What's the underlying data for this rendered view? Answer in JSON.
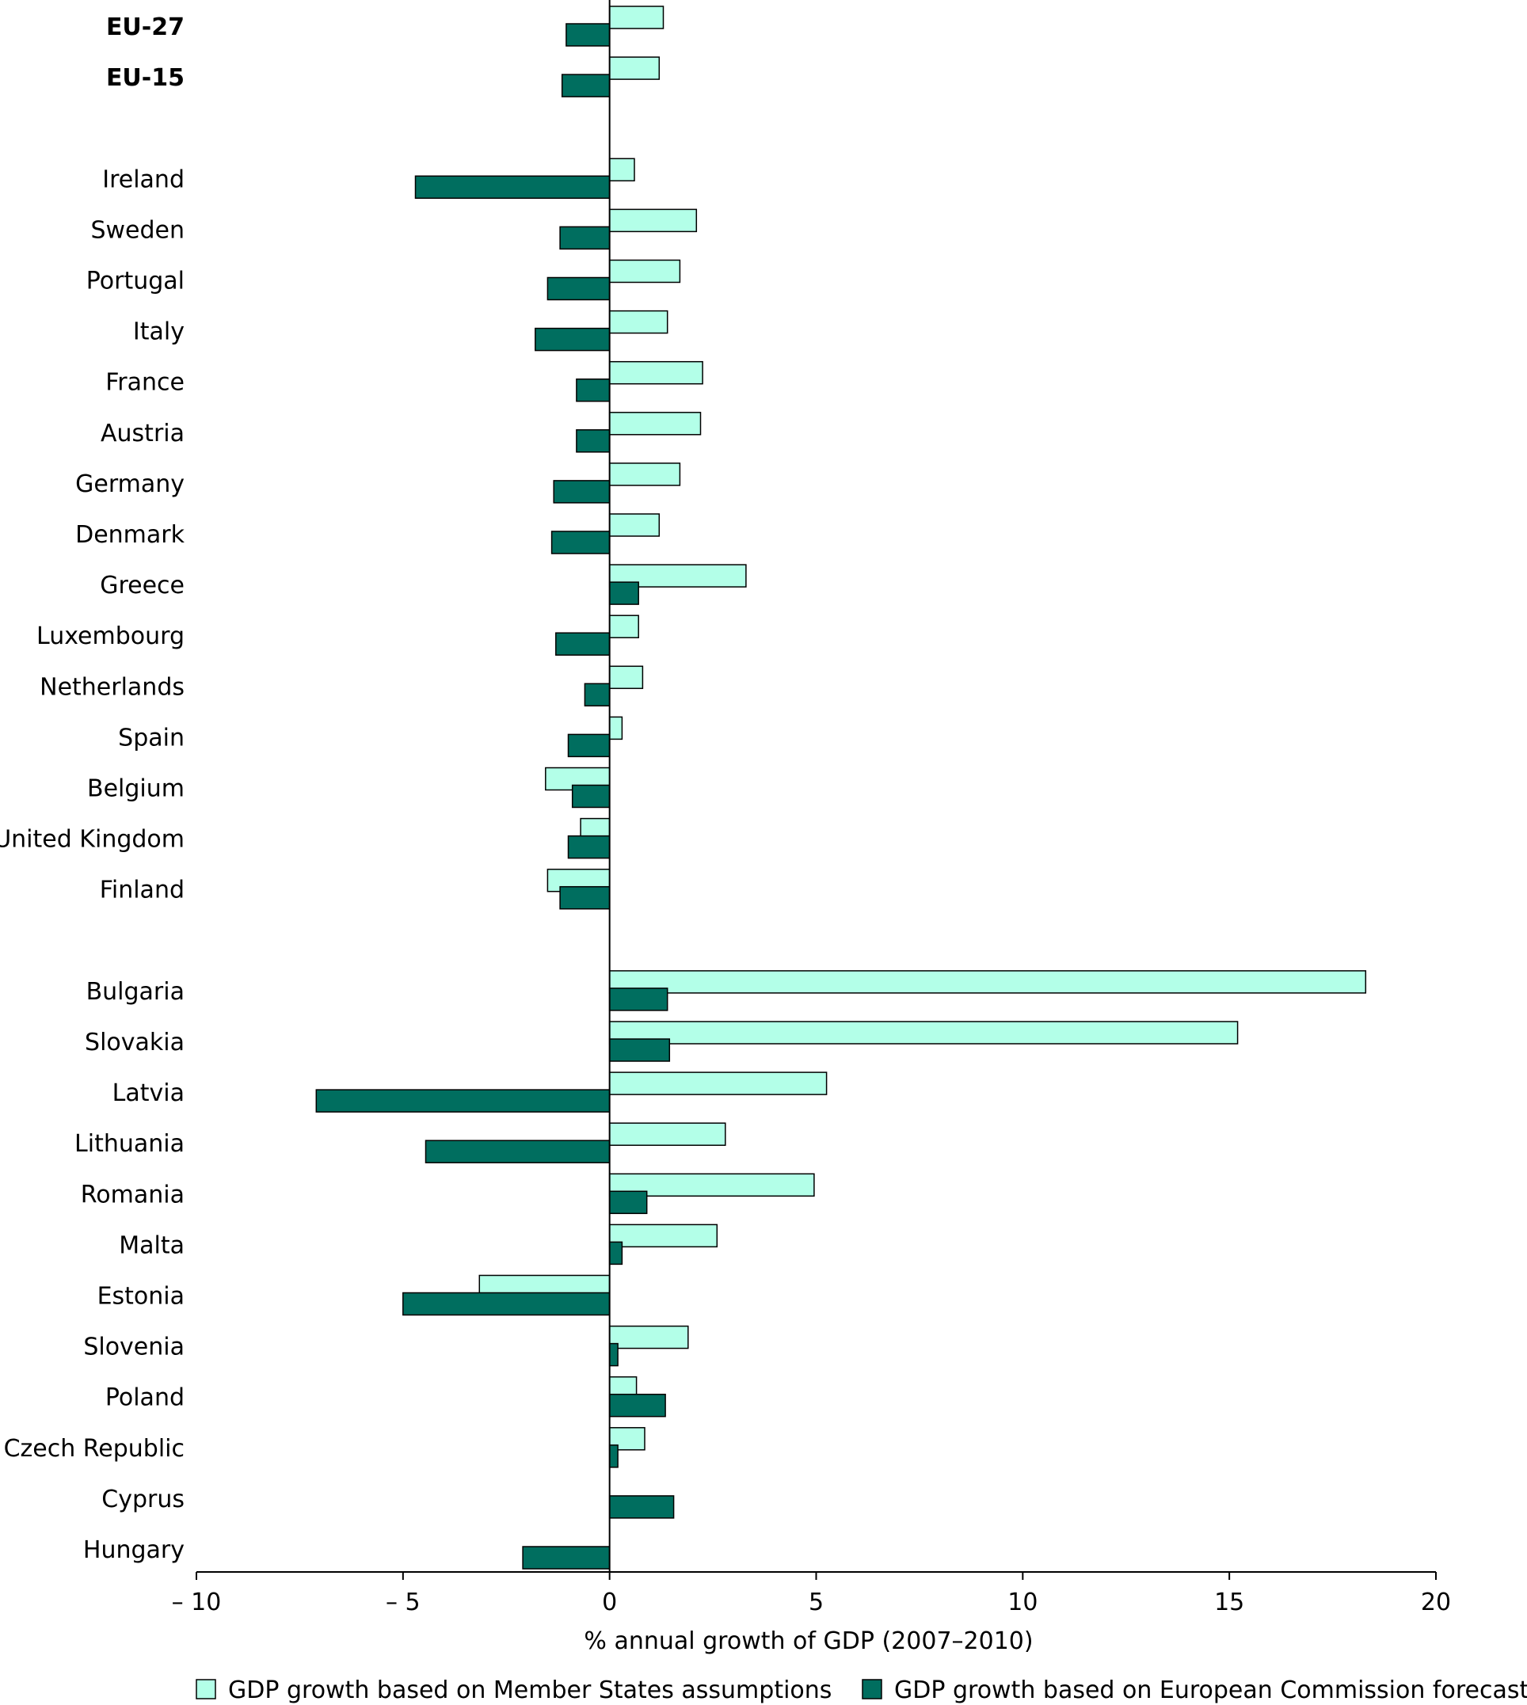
{
  "chart_data": {
    "type": "bar",
    "orientation": "horizontal",
    "xlabel": "% annual growth of GDP (2007–2010)",
    "xlim": [
      -10,
      20
    ],
    "xticks": [
      -10,
      -5,
      0,
      5,
      10,
      15,
      20
    ],
    "xtick_labels": [
      "– 10",
      "– 5",
      "0",
      "5",
      "10",
      "15",
      "20"
    ],
    "grid": false,
    "legend_position": "bottom",
    "categories": [
      {
        "label": "EU-27",
        "bold": true,
        "ms": 1.3,
        "ec": -1.05
      },
      {
        "label": "EU-15",
        "bold": true,
        "ms": 1.2,
        "ec": -1.15
      },
      {
        "label": "",
        "gap": true
      },
      {
        "label": "Ireland",
        "ms": 0.6,
        "ec": -4.7
      },
      {
        "label": "Sweden",
        "ms": 2.1,
        "ec": -1.2
      },
      {
        "label": "Portugal",
        "ms": 1.7,
        "ec": -1.5
      },
      {
        "label": "Italy",
        "ms": 1.4,
        "ec": -1.8
      },
      {
        "label": "France",
        "ms": 2.25,
        "ec": -0.8
      },
      {
        "label": "Austria",
        "ms": 2.2,
        "ec": -0.8
      },
      {
        "label": "Germany",
        "ms": 1.7,
        "ec": -1.35
      },
      {
        "label": "Denmark",
        "ms": 1.2,
        "ec": -1.4
      },
      {
        "label": "Greece",
        "ms": 3.3,
        "ec": 0.7
      },
      {
        "label": "Luxembourg",
        "ms": 0.7,
        "ec": -1.3
      },
      {
        "label": "Netherlands",
        "ms": 0.8,
        "ec": -0.6
      },
      {
        "label": "Spain",
        "ms": 0.3,
        "ec": -1.0
      },
      {
        "label": "Belgium",
        "ms": -1.55,
        "ec": -0.9
      },
      {
        "label": "United Kingdom",
        "ms": -0.7,
        "ec": -1.0
      },
      {
        "label": "Finland",
        "ms": -1.5,
        "ec": -1.2
      },
      {
        "label": "",
        "gap": true
      },
      {
        "label": "Bulgaria",
        "ms": 18.3,
        "ec": 1.4
      },
      {
        "label": "Slovakia",
        "ms": 15.2,
        "ec": 1.45
      },
      {
        "label": "Latvia",
        "ms": 5.25,
        "ec": -7.1
      },
      {
        "label": "Lithuania",
        "ms": 2.8,
        "ec": -4.45
      },
      {
        "label": "Romania",
        "ms": 4.95,
        "ec": 0.9
      },
      {
        "label": "Malta",
        "ms": 2.6,
        "ec": 0.3
      },
      {
        "label": "Estonia",
        "ms": -3.15,
        "ec": -5.0
      },
      {
        "label": "Slovenia",
        "ms": 1.9,
        "ec": 0.2
      },
      {
        "label": "Poland",
        "ms": 0.65,
        "ec": 1.35
      },
      {
        "label": "Czech Republic",
        "ms": 0.85,
        "ec": 0.2
      },
      {
        "label": "Cyprus",
        "ms": 0,
        "ec": 1.55
      },
      {
        "label": "Hungary",
        "ms": 0,
        "ec": -2.1
      }
    ],
    "series": [
      {
        "key": "ms",
        "name": "GDP growth based on Member States assumptions",
        "color": "#b3ffe8"
      },
      {
        "key": "ec",
        "name": "GDP growth based on European Commission forecasts",
        "color": "#006e5f"
      }
    ]
  }
}
